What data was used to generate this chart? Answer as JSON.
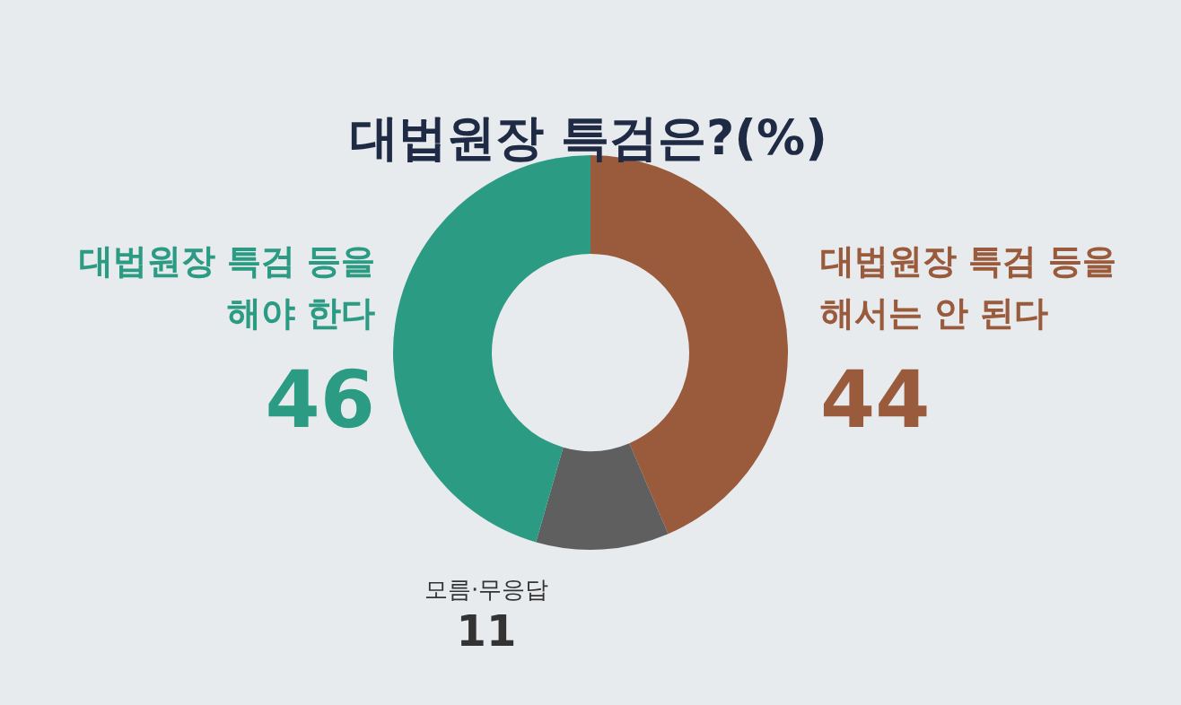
{
  "chart_data": {
    "type": "donut",
    "title": "대법원장 특검은?(%)",
    "categories": [
      "대법원장 특검 등을\n해서는 안 된다",
      "모름·무응답",
      "대법원장 특검 등을\n해야 한다"
    ],
    "values": [
      44,
      11,
      46
    ],
    "colors": [
      "#9a5b3d",
      "#5f5f5f",
      "#2b9b83"
    ],
    "data_labels": true,
    "legend": false
  }
}
